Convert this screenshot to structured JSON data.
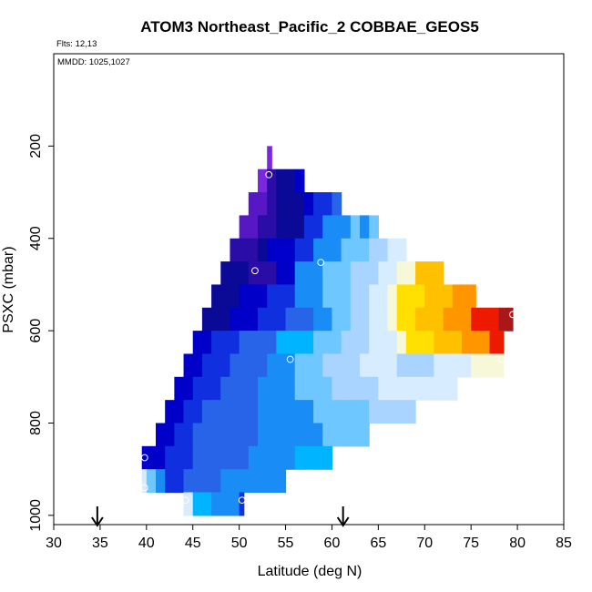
{
  "chart_data": {
    "type": "heatmap",
    "title": "ATOM3 Northeast_Pacific_2 COBBAE_GEOS5",
    "annotations": {
      "flights": "Flts: 12,13",
      "dates": "MMDD: 1025,1027"
    },
    "xlabel": "Latitude (deg N)",
    "ylabel": "PSXC (mbar)",
    "xlim": [
      30,
      85
    ],
    "ylim": [
      1020,
      0
    ],
    "xticks": [
      "30",
      "35",
      "40",
      "45",
      "50",
      "55",
      "60",
      "65",
      "70",
      "75",
      "80",
      "85"
    ],
    "yticks": [
      {
        "value": 200,
        "label": "200"
      },
      {
        "value": 400,
        "label": "400"
      },
      {
        "value": 600,
        "label": "600"
      },
      {
        "value": 800,
        "label": "800"
      },
      {
        "value": 1000,
        "label": "1000"
      }
    ],
    "cell_lat_width": 1,
    "layer_depth": 50,
    "colors": {
      "purple": "#7a28e0",
      "violet": "#5518c4",
      "indigo": "#2a0ca6",
      "navy": "#0a0a96",
      "dkblue": "#0000c8",
      "blue": "#1030e0",
      "royal": "#2864e8",
      "azure": "#1a8cf5",
      "sky": "#00b4ff",
      "lightblue": "#6ec8ff",
      "paleblue": "#a8d4ff",
      "pale": "#d8ecff",
      "cream": "#f6f8d8",
      "yellow": "#ffe000",
      "gold": "#ffc000",
      "orange": "#ff9600",
      "red": "#ee1a00",
      "dkred": "#a81818"
    },
    "rows": [
      {
        "p": 225,
        "segments": [
          {
            "from": 53,
            "to": 53.5,
            "color": "purple"
          }
        ]
      },
      {
        "p": 275,
        "segments": [
          {
            "from": 52,
            "to": 53,
            "color": "purple"
          },
          {
            "from": 53,
            "to": 54,
            "color": "indigo"
          },
          {
            "from": 54,
            "to": 56,
            "color": "navy"
          },
          {
            "from": 56,
            "to": 57,
            "color": "dkblue"
          }
        ]
      },
      {
        "p": 325,
        "segments": [
          {
            "from": 51,
            "to": 53,
            "color": "violet"
          },
          {
            "from": 53,
            "to": 54,
            "color": "indigo"
          },
          {
            "from": 54,
            "to": 57,
            "color": "navy"
          },
          {
            "from": 57,
            "to": 58,
            "color": "dkblue"
          },
          {
            "from": 58,
            "to": 60,
            "color": "blue"
          },
          {
            "from": 60,
            "to": 61,
            "color": "royal"
          }
        ]
      },
      {
        "p": 375,
        "segments": [
          {
            "from": 50,
            "to": 52,
            "color": "violet"
          },
          {
            "from": 52,
            "to": 54,
            "color": "indigo"
          },
          {
            "from": 54,
            "to": 57,
            "color": "navy"
          },
          {
            "from": 57,
            "to": 59,
            "color": "blue"
          },
          {
            "from": 59,
            "to": 62,
            "color": "azure"
          },
          {
            "from": 62,
            "to": 63,
            "color": "lightblue"
          },
          {
            "from": 63,
            "to": 64,
            "color": "azure"
          },
          {
            "from": 64,
            "to": 65,
            "color": "lightblue"
          }
        ]
      },
      {
        "p": 425,
        "segments": [
          {
            "from": 49,
            "to": 52,
            "color": "indigo"
          },
          {
            "from": 52,
            "to": 53,
            "color": "navy"
          },
          {
            "from": 53,
            "to": 56,
            "color": "dkblue"
          },
          {
            "from": 56,
            "to": 58,
            "color": "blue"
          },
          {
            "from": 58,
            "to": 61,
            "color": "azure"
          },
          {
            "from": 61,
            "to": 64,
            "color": "lightblue"
          },
          {
            "from": 64,
            "to": 66,
            "color": "paleblue"
          },
          {
            "from": 66,
            "to": 68,
            "color": "pale"
          }
        ]
      },
      {
        "p": 475,
        "segments": [
          {
            "from": 48,
            "to": 51,
            "color": "navy"
          },
          {
            "from": 51,
            "to": 54,
            "color": "indigo"
          },
          {
            "from": 54,
            "to": 56,
            "color": "dkblue"
          },
          {
            "from": 56,
            "to": 59,
            "color": "azure"
          },
          {
            "from": 59,
            "to": 62,
            "color": "lightblue"
          },
          {
            "from": 62,
            "to": 65,
            "color": "paleblue"
          },
          {
            "from": 65,
            "to": 67,
            "color": "pale"
          },
          {
            "from": 67,
            "to": 69,
            "color": "cream"
          },
          {
            "from": 69,
            "to": 72,
            "color": "gold"
          }
        ]
      },
      {
        "p": 525,
        "segments": [
          {
            "from": 47,
            "to": 50,
            "color": "navy"
          },
          {
            "from": 50,
            "to": 53,
            "color": "dkblue"
          },
          {
            "from": 53,
            "to": 56,
            "color": "blue"
          },
          {
            "from": 56,
            "to": 59,
            "color": "azure"
          },
          {
            "from": 59,
            "to": 62,
            "color": "lightblue"
          },
          {
            "from": 62,
            "to": 64,
            "color": "paleblue"
          },
          {
            "from": 64,
            "to": 66,
            "color": "pale"
          },
          {
            "from": 66,
            "to": 67,
            "color": "cream"
          },
          {
            "from": 67,
            "to": 70,
            "color": "yellow"
          },
          {
            "from": 70,
            "to": 73,
            "color": "gold"
          },
          {
            "from": 73,
            "to": 75.5,
            "color": "orange"
          }
        ]
      },
      {
        "p": 575,
        "segments": [
          {
            "from": 46,
            "to": 49,
            "color": "navy"
          },
          {
            "from": 49,
            "to": 52,
            "color": "dkblue"
          },
          {
            "from": 52,
            "to": 55,
            "color": "blue"
          },
          {
            "from": 55,
            "to": 58,
            "color": "royal"
          },
          {
            "from": 58,
            "to": 60,
            "color": "azure"
          },
          {
            "from": 60,
            "to": 62,
            "color": "lightblue"
          },
          {
            "from": 62,
            "to": 64,
            "color": "paleblue"
          },
          {
            "from": 64,
            "to": 66,
            "color": "pale"
          },
          {
            "from": 66,
            "to": 67,
            "color": "cream"
          },
          {
            "from": 67,
            "to": 69,
            "color": "yellow"
          },
          {
            "from": 69,
            "to": 72,
            "color": "gold"
          },
          {
            "from": 72,
            "to": 75,
            "color": "orange"
          },
          {
            "from": 75,
            "to": 78,
            "color": "red"
          },
          {
            "from": 78,
            "to": 79.5,
            "color": "dkred"
          }
        ]
      },
      {
        "p": 625,
        "segments": [
          {
            "from": 45,
            "to": 47,
            "color": "dkblue"
          },
          {
            "from": 47,
            "to": 50,
            "color": "blue"
          },
          {
            "from": 50,
            "to": 54,
            "color": "royal"
          },
          {
            "from": 54,
            "to": 58,
            "color": "sky"
          },
          {
            "from": 58,
            "to": 61,
            "color": "lightblue"
          },
          {
            "from": 61,
            "to": 64,
            "color": "paleblue"
          },
          {
            "from": 64,
            "to": 67,
            "color": "pale"
          },
          {
            "from": 67,
            "to": 68,
            "color": "cream"
          },
          {
            "from": 68,
            "to": 71,
            "color": "yellow"
          },
          {
            "from": 71,
            "to": 74,
            "color": "gold"
          },
          {
            "from": 74,
            "to": 77,
            "color": "orange"
          },
          {
            "from": 77,
            "to": 78.5,
            "color": "red"
          }
        ]
      },
      {
        "p": 675,
        "segments": [
          {
            "from": 44,
            "to": 46,
            "color": "dkblue"
          },
          {
            "from": 46,
            "to": 49,
            "color": "blue"
          },
          {
            "from": 49,
            "to": 53,
            "color": "royal"
          },
          {
            "from": 53,
            "to": 56,
            "color": "azure"
          },
          {
            "from": 56,
            "to": 59,
            "color": "lightblue"
          },
          {
            "from": 59,
            "to": 63,
            "color": "paleblue"
          },
          {
            "from": 63,
            "to": 67,
            "color": "pale"
          },
          {
            "from": 67,
            "to": 71,
            "color": "paleblue"
          },
          {
            "from": 71,
            "to": 75,
            "color": "pale"
          },
          {
            "from": 75,
            "to": 78.5,
            "color": "cream"
          }
        ]
      },
      {
        "p": 725,
        "segments": [
          {
            "from": 43,
            "to": 45,
            "color": "dkblue"
          },
          {
            "from": 45,
            "to": 48,
            "color": "blue"
          },
          {
            "from": 48,
            "to": 52,
            "color": "royal"
          },
          {
            "from": 52,
            "to": 56,
            "color": "azure"
          },
          {
            "from": 56,
            "to": 60,
            "color": "lightblue"
          },
          {
            "from": 60,
            "to": 65,
            "color": "paleblue"
          },
          {
            "from": 65,
            "to": 70,
            "color": "pale"
          },
          {
            "from": 70,
            "to": 73.5,
            "color": "pale"
          }
        ]
      },
      {
        "p": 775,
        "segments": [
          {
            "from": 42,
            "to": 44,
            "color": "dkblue"
          },
          {
            "from": 44,
            "to": 46,
            "color": "blue"
          },
          {
            "from": 46,
            "to": 52,
            "color": "royal"
          },
          {
            "from": 52,
            "to": 58,
            "color": "azure"
          },
          {
            "from": 58,
            "to": 64,
            "color": "lightblue"
          },
          {
            "from": 64,
            "to": 69,
            "color": "paleblue"
          }
        ]
      },
      {
        "p": 825,
        "segments": [
          {
            "from": 41,
            "to": 43,
            "color": "dkblue"
          },
          {
            "from": 43,
            "to": 45,
            "color": "blue"
          },
          {
            "from": 45,
            "to": 52,
            "color": "royal"
          },
          {
            "from": 52,
            "to": 59,
            "color": "azure"
          },
          {
            "from": 59,
            "to": 64,
            "color": "lightblue"
          }
        ]
      },
      {
        "p": 875,
        "segments": [
          {
            "from": 39.5,
            "to": 42,
            "color": "dkblue"
          },
          {
            "from": 42,
            "to": 45,
            "color": "blue"
          },
          {
            "from": 45,
            "to": 51,
            "color": "royal"
          },
          {
            "from": 51,
            "to": 56,
            "color": "azure"
          },
          {
            "from": 56,
            "to": 60,
            "color": "sky"
          }
        ]
      },
      {
        "p": 925,
        "segments": [
          {
            "from": 39.5,
            "to": 40,
            "color": "pale"
          },
          {
            "from": 40,
            "to": 41,
            "color": "lightblue"
          },
          {
            "from": 41,
            "to": 42,
            "color": "azure"
          },
          {
            "from": 42,
            "to": 44,
            "color": "blue"
          },
          {
            "from": 44,
            "to": 48,
            "color": "royal"
          },
          {
            "from": 48,
            "to": 55,
            "color": "azure"
          }
        ]
      },
      {
        "p": 975,
        "segments": [
          {
            "from": 44,
            "to": 45,
            "color": "pale"
          },
          {
            "from": 45,
            "to": 47,
            "color": "sky"
          },
          {
            "from": 47,
            "to": 50,
            "color": "azure"
          },
          {
            "from": 50,
            "to": 50.5,
            "color": "blue"
          }
        ]
      }
    ],
    "points": [
      {
        "x": 53.2,
        "y": 262
      },
      {
        "x": 51.7,
        "y": 470
      },
      {
        "x": 58.8,
        "y": 452
      },
      {
        "x": 79.5,
        "y": 565
      },
      {
        "x": 55.5,
        "y": 662
      },
      {
        "x": 78.3,
        "y": 662
      },
      {
        "x": 39.8,
        "y": 875
      },
      {
        "x": 39.8,
        "y": 940
      },
      {
        "x": 44.2,
        "y": 967
      },
      {
        "x": 50.3,
        "y": 967
      }
    ],
    "arrows": [
      {
        "x": 34.7,
        "label": ""
      },
      {
        "x": 61.2,
        "label": ""
      }
    ]
  }
}
